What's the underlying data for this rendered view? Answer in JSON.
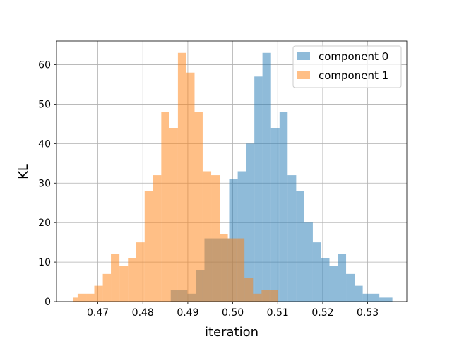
{
  "chart_data": {
    "type": "bar",
    "subtype": "histogram",
    "title": "",
    "xlabel": "iteration",
    "ylabel": "KL",
    "xlim": [
      0.4608,
      0.5387
    ],
    "ylim": [
      0,
      66
    ],
    "grid": true,
    "legend_position": "top-right",
    "x_ticks": [
      0.47,
      0.48,
      0.49,
      0.5,
      0.51,
      0.52,
      0.53
    ],
    "x_tick_labels": [
      "0.47",
      "0.48",
      "0.49",
      "0.50",
      "0.51",
      "0.52",
      "0.53"
    ],
    "y_ticks": [
      0,
      10,
      20,
      30,
      40,
      50,
      60
    ],
    "y_tick_labels": [
      "0",
      "10",
      "20",
      "30",
      "40",
      "50",
      "60"
    ],
    "series": [
      {
        "name": "component 0",
        "color": "#1f77b4",
        "alpha": 0.5,
        "bin_edges": [
          0.4862,
          0.4881,
          0.4899,
          0.4918,
          0.4937,
          0.4955,
          0.4974,
          0.4992,
          0.5011,
          0.5029,
          0.5048,
          0.5066,
          0.5085,
          0.5104,
          0.5122,
          0.5141,
          0.5159,
          0.5178,
          0.5196,
          0.5215,
          0.5234,
          0.5252,
          0.5271,
          0.5289,
          0.5308,
          0.5326,
          0.5345,
          0.5355
        ],
        "counts": [
          3,
          3,
          2,
          8,
          16,
          16,
          16,
          31,
          33,
          40,
          57,
          63,
          44,
          48,
          32,
          28,
          20,
          15,
          11,
          9,
          12,
          7,
          4,
          2,
          2,
          1,
          1
        ]
      },
      {
        "name": "component 1",
        "color": "#ff7f0e",
        "alpha": 0.5,
        "bin_edges": [
          0.4645,
          0.4655,
          0.4674,
          0.4692,
          0.4711,
          0.4729,
          0.4748,
          0.4767,
          0.4785,
          0.4804,
          0.4822,
          0.4841,
          0.4859,
          0.4878,
          0.4896,
          0.4915,
          0.4933,
          0.4952,
          0.4971,
          0.4989,
          0.5008,
          0.5026,
          0.5045,
          0.5064,
          0.5082,
          0.5101,
          0.5119,
          0.5138
        ],
        "counts": [
          1,
          2,
          2,
          4,
          7,
          12,
          9,
          11,
          15,
          28,
          32,
          48,
          44,
          63,
          58,
          48,
          33,
          32,
          17,
          16,
          16,
          6,
          2,
          3,
          3,
          0,
          0
        ]
      }
    ]
  }
}
